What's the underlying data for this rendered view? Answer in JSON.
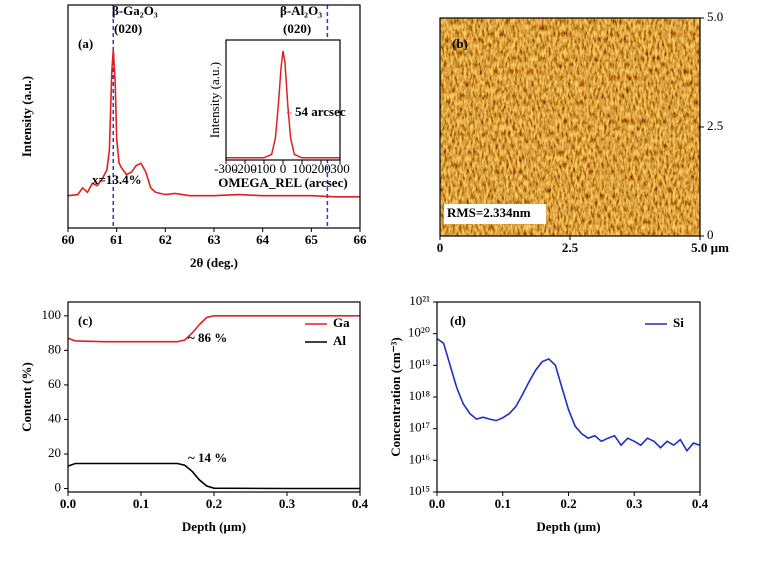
{
  "chart_data": [
    {
      "type": "line",
      "panel_label": "(a)",
      "xlabel": "2θ (deg.)",
      "ylabel": "Intensity (a.u.)",
      "xlim": [
        60,
        66
      ],
      "xticks": [
        60,
        61,
        62,
        63,
        64,
        65,
        66
      ],
      "ylim": [
        0,
        10
      ],
      "series": [
        {
          "color": "#e02020",
          "x": [
            60.0,
            60.2,
            60.3,
            60.4,
            60.5,
            60.6,
            60.7,
            60.8,
            60.85,
            60.9,
            60.93,
            60.97,
            61.0,
            61.05,
            61.1,
            61.2,
            61.3,
            61.4,
            61.5,
            61.6,
            61.7,
            61.8,
            62.0,
            62.2,
            62.5,
            63.0,
            63.5,
            64.0,
            64.5,
            65.0,
            65.5,
            66.0
          ],
          "values": [
            1.45,
            1.5,
            1.8,
            1.6,
            2.0,
            1.9,
            2.2,
            2.6,
            3.5,
            7.0,
            8.0,
            6.5,
            4.0,
            2.9,
            2.7,
            2.4,
            2.5,
            2.8,
            2.9,
            2.5,
            1.8,
            1.6,
            1.5,
            1.55,
            1.45,
            1.45,
            1.5,
            1.45,
            1.45,
            1.45,
            1.4,
            1.4
          ]
        }
      ],
      "vlines": [
        {
          "value": 60.93,
          "color": "#1f3fbf"
        },
        {
          "value": 65.33,
          "color": "#1f3fbf"
        }
      ],
      "annotations": [
        {
          "text": "β-Ga₂O₃",
          "color": "#000"
        },
        {
          "text": "(020)",
          "color": "#000"
        },
        {
          "text": "β-Al₂O₃",
          "color": "#000"
        },
        {
          "text": "(020)",
          "color": "#000"
        },
        {
          "text": "x=13.4%",
          "color": "#e02020"
        }
      ]
    },
    {
      "type": "line",
      "xlabel": "OMEGA_REL (arcsec)",
      "ylabel": "Intensity (a.u.)",
      "xlim": [
        -300,
        300
      ],
      "xticks": [
        -300,
        -200,
        -100,
        0,
        100,
        200,
        300
      ],
      "ylim": [
        0,
        1.1
      ],
      "series": [
        {
          "color": "#e02020",
          "x": [
            -300,
            -100,
            -60,
            -40,
            -25,
            -10,
            0,
            10,
            25,
            40,
            60,
            100,
            300
          ],
          "values": [
            0.02,
            0.02,
            0.05,
            0.2,
            0.5,
            0.85,
            1.0,
            0.9,
            0.5,
            0.2,
            0.05,
            0.02,
            0.02
          ]
        }
      ],
      "annotations": [
        {
          "text": "54 arcsec",
          "color": "#e02020"
        }
      ]
    },
    {
      "type": "image",
      "panel_label": "(b)",
      "y_axis_position": "right",
      "xlim": [
        0,
        5
      ],
      "xticks": [
        0,
        2.5,
        {
          "value": 5,
          "label": "5.0 µm"
        }
      ],
      "ylim": [
        0,
        5
      ],
      "yticks": [
        0,
        2.5,
        {
          "value": 5,
          "label": "5.0"
        }
      ],
      "annotations": [
        {
          "text": "RMS=2.334nm",
          "color": "#000"
        }
      ]
    },
    {
      "type": "line",
      "panel_label": "(c)",
      "xlabel": "Depth (µm)",
      "ylabel": "Content (%)",
      "xlim": [
        0,
        0.4
      ],
      "xticks": [
        {
          "value": 0,
          "label": "0.0"
        },
        0.1,
        0.2,
        0.3,
        0.4
      ],
      "ylim": [
        -2,
        108
      ],
      "yticks": [
        0,
        20,
        40,
        60,
        80,
        100
      ],
      "legend": "upper right",
      "series": [
        {
          "name": "Ga",
          "color": "#e02020",
          "x": [
            0,
            0.01,
            0.05,
            0.1,
            0.15,
            0.16,
            0.17,
            0.18,
            0.19,
            0.2,
            0.3,
            0.4
          ],
          "values": [
            87,
            85.5,
            85,
            85,
            85,
            86,
            90,
            95,
            99,
            100,
            100,
            100
          ]
        },
        {
          "name": "Al",
          "color": "#000000",
          "x": [
            0,
            0.01,
            0.05,
            0.1,
            0.15,
            0.16,
            0.17,
            0.18,
            0.19,
            0.2,
            0.3,
            0.4
          ],
          "values": [
            13,
            14.5,
            14.5,
            14.5,
            14.5,
            13.5,
            10,
            5,
            1.5,
            0.2,
            0,
            0
          ]
        }
      ],
      "annotations": [
        {
          "text": "~ 86 %",
          "color": "#e02020"
        },
        {
          "text": "~ 14 %",
          "color": "#000"
        }
      ]
    },
    {
      "type": "line",
      "panel_label": "(d)",
      "xlabel": "Depth (µm)",
      "ylabel": "Concentration (cm⁻³)",
      "xlim": [
        0,
        0.4
      ],
      "xticks": [
        {
          "value": 0,
          "label": "0.0"
        },
        0.1,
        0.2,
        0.3,
        0.4
      ],
      "ylim": [
        1000000000000000.0,
        1e+21
      ],
      "log_y": true,
      "legend": "upper right",
      "yticks": [
        {
          "value": 1000000000000000.0,
          "label": "10¹⁵"
        },
        {
          "value": 1e+16,
          "label": "10¹⁶"
        },
        {
          "value": 1e+17,
          "label": "10¹⁷"
        },
        {
          "value": 1e+18,
          "label": "10¹⁸"
        },
        {
          "value": 1e+19,
          "label": "10¹⁹"
        },
        {
          "value": 1e+20,
          "label": "10²⁰"
        },
        {
          "value": 1e+21,
          "label": "10²¹"
        }
      ],
      "series": [
        {
          "name": "Si",
          "color": "#1f2fbf",
          "x": [
            0,
            0.01,
            0.02,
            0.03,
            0.04,
            0.05,
            0.06,
            0.07,
            0.08,
            0.09,
            0.1,
            0.11,
            0.12,
            0.13,
            0.14,
            0.15,
            0.16,
            0.17,
            0.18,
            0.19,
            0.2,
            0.21,
            0.22,
            0.23,
            0.24,
            0.25,
            0.26,
            0.27,
            0.28,
            0.29,
            0.3,
            0.31,
            0.32,
            0.33,
            0.34,
            0.35,
            0.36,
            0.37,
            0.38,
            0.39,
            0.4
          ],
          "values": [
            7e+19,
            5e+19,
            1e+19,
            2e+18,
            6e+17,
            3e+17,
            2e+17,
            2.3e+17,
            2e+17,
            1.8e+17,
            2.2e+17,
            3e+17,
            5e+17,
            1.2e+18,
            3e+18,
            7e+18,
            1.3e+19,
            1.6e+19,
            1e+19,
            2e+18,
            4e+17,
            1.2e+17,
            7e+16,
            5e+16,
            6e+16,
            4e+16,
            5e+16,
            6e+16,
            3e+16,
            5e+16,
            4e+16,
            3e+16,
            5e+16,
            4e+16,
            2.5e+16,
            4e+16,
            3e+16,
            4.5e+16,
            2e+16,
            3.5e+16,
            3e+16
          ]
        }
      ]
    }
  ]
}
